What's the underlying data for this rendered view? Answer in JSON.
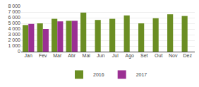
{
  "chart_data": {
    "type": "bar",
    "categories": [
      "Jan",
      "Fev",
      "Mar",
      "Abr",
      "Mai",
      "Jun",
      "Jul",
      "Ago",
      "Set",
      "Out",
      "Nov",
      "Dez"
    ],
    "series": [
      {
        "name": "2016",
        "color": "#6b8e23",
        "values": [
          4700,
          5000,
          5800,
          5450,
          6900,
          5600,
          5800,
          6400,
          5000,
          5900,
          6600,
          6300
        ]
      },
      {
        "name": "2017",
        "color": "#9b3093",
        "values": [
          4900,
          4000,
          5350,
          5450,
          null,
          null,
          null,
          null,
          null,
          null,
          null,
          null
        ]
      }
    ],
    "ylim": [
      0,
      8000
    ],
    "yticks": [
      0,
      {
        "value": 1000,
        "label": "1 000"
      },
      {
        "value": 2000,
        "label": "2 000"
      },
      {
        "value": 3000,
        "label": "3 000"
      },
      {
        "value": 4000,
        "label": "4 000"
      },
      {
        "value": 5000,
        "label": "5 000"
      },
      {
        "value": 6000,
        "label": "6 000"
      },
      {
        "value": 7000,
        "label": "7 000"
      },
      {
        "value": 8000,
        "label": "8 000"
      }
    ],
    "grid": true,
    "legend": "bottom"
  }
}
